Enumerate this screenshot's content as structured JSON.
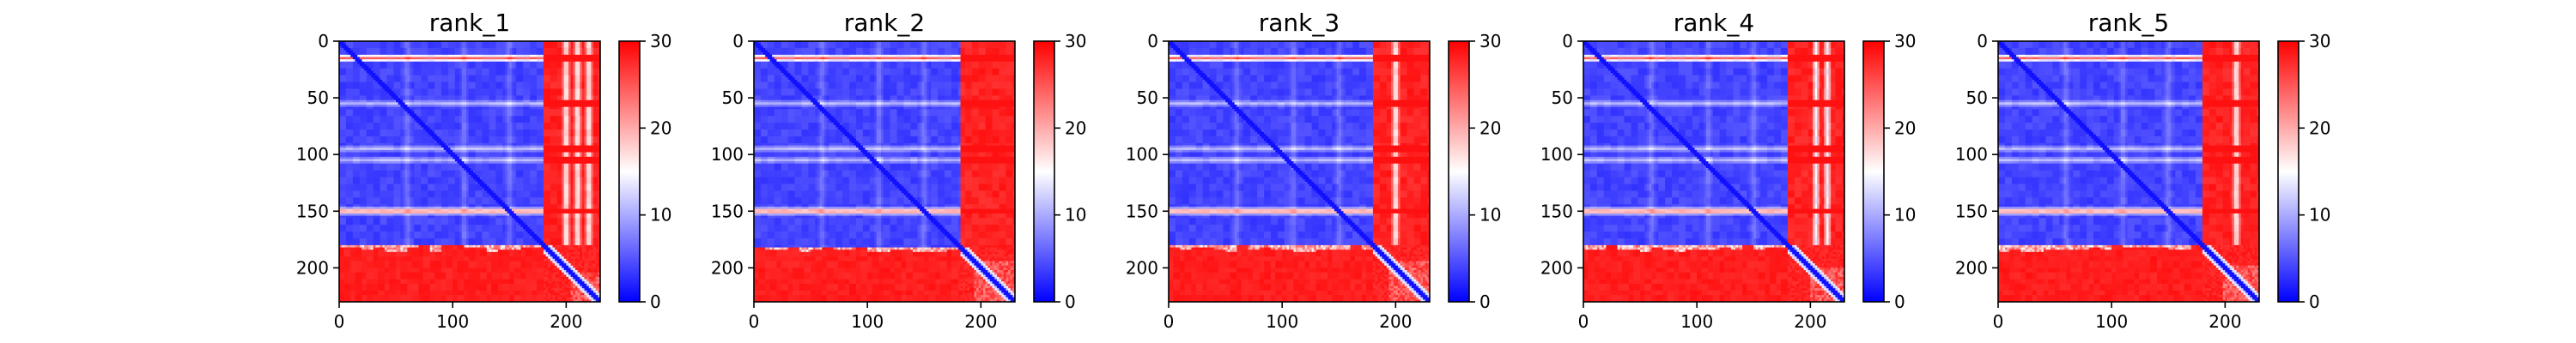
{
  "chart_data": [
    {
      "type": "heatmap",
      "title": "rank_1",
      "size": 230,
      "xticks": [
        0,
        100,
        200
      ],
      "yticks": [
        0,
        50,
        100,
        150,
        200
      ],
      "colorbar": {
        "min": 0,
        "max": 30,
        "ticks": [
          0,
          10,
          20,
          30
        ],
        "colors": [
          "#0000ff",
          "#ffffff",
          "#ff0000"
        ]
      },
      "structure": {
        "domain_boundary": 180,
        "tail_start": 205,
        "low_value": 3,
        "high_value": 29,
        "stripes": [
          15,
          55,
          95,
          105,
          150
        ],
        "faint_columns": [
          60,
          110,
          150,
          200,
          210,
          220
        ]
      }
    },
    {
      "type": "heatmap",
      "title": "rank_2",
      "size": 230,
      "xticks": [
        0,
        100,
        200
      ],
      "yticks": [
        0,
        50,
        100,
        150,
        200
      ],
      "colorbar": {
        "min": 0,
        "max": 30,
        "ticks": [
          0,
          10,
          20,
          30
        ],
        "colors": [
          "#0000ff",
          "#ffffff",
          "#ff0000"
        ]
      },
      "structure": {
        "domain_boundary": 182,
        "tail_start": 195,
        "low_value": 3,
        "high_value": 29,
        "stripes": [
          15,
          55,
          95,
          105,
          150
        ],
        "faint_columns": [
          60,
          110,
          150
        ]
      }
    },
    {
      "type": "heatmap",
      "title": "rank_3",
      "size": 230,
      "xticks": [
        0,
        100,
        200
      ],
      "yticks": [
        0,
        50,
        100,
        150,
        200
      ],
      "colorbar": {
        "min": 0,
        "max": 30,
        "ticks": [
          0,
          10,
          20,
          30
        ],
        "colors": [
          "#0000ff",
          "#ffffff",
          "#ff0000"
        ]
      },
      "structure": {
        "domain_boundary": 180,
        "tail_start": 195,
        "low_value": 3,
        "high_value": 29,
        "stripes": [
          15,
          55,
          95,
          105,
          150
        ],
        "faint_columns": [
          60,
          110,
          150,
          200
        ]
      }
    },
    {
      "type": "heatmap",
      "title": "rank_4",
      "size": 230,
      "xticks": [
        0,
        100,
        200
      ],
      "yticks": [
        0,
        50,
        100,
        150,
        200
      ],
      "colorbar": {
        "min": 0,
        "max": 30,
        "ticks": [
          0,
          10,
          20,
          30
        ],
        "colors": [
          "#0000ff",
          "#ffffff",
          "#ff0000"
        ]
      },
      "structure": {
        "domain_boundary": 180,
        "tail_start": 200,
        "low_value": 3,
        "high_value": 29,
        "stripes": [
          15,
          55,
          95,
          105,
          150
        ],
        "faint_columns": [
          60,
          110,
          150,
          205,
          215
        ]
      }
    },
    {
      "type": "heatmap",
      "title": "rank_5",
      "size": 230,
      "xticks": [
        0,
        100,
        200
      ],
      "yticks": [
        0,
        50,
        100,
        150,
        200
      ],
      "colorbar": {
        "min": 0,
        "max": 30,
        "ticks": [
          0,
          10,
          20,
          30
        ],
        "colors": [
          "#0000ff",
          "#ffffff",
          "#ff0000"
        ]
      },
      "structure": {
        "domain_boundary": 180,
        "tail_start": 198,
        "low_value": 3,
        "high_value": 29,
        "stripes": [
          15,
          55,
          95,
          105,
          150
        ],
        "faint_columns": [
          60,
          110,
          150,
          210
        ]
      }
    }
  ]
}
